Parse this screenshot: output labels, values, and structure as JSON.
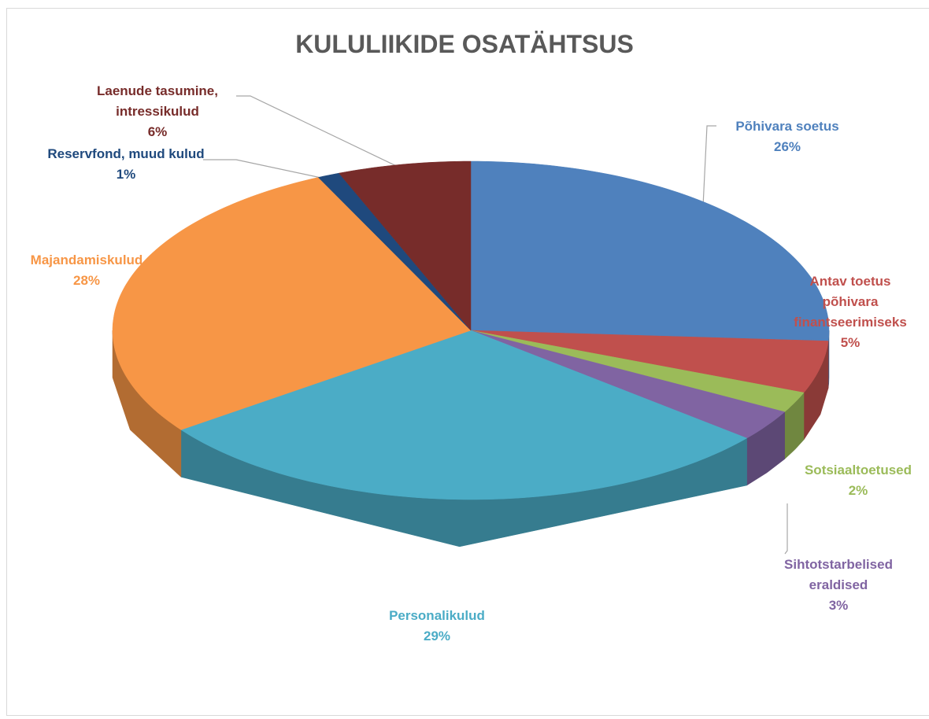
{
  "chart_data": {
    "type": "pie",
    "title": "KULULIIKIDE OSATÄHTSUS",
    "categories": [
      "Põhivara soetus",
      "Antav toetus põhivara finantseerimiseks",
      "Sotsiaaltoetused",
      "Sihtotstarbelised eraldised",
      "Personalikulud",
      "Majandamiskulud",
      "Reservfond, muud kulud",
      "Laenude tasumine, intressikulud"
    ],
    "values": [
      26,
      5,
      2,
      3,
      29,
      28,
      1,
      6
    ],
    "value_labels": [
      "26%",
      "5%",
      "2%",
      "3%",
      "29%",
      "28%",
      "1%",
      "6%"
    ],
    "colors": [
      "#4f81bd",
      "#c0504d",
      "#9bbb59",
      "#8064a2",
      "#4bacc6",
      "#f79646",
      "#1f497d",
      "#772c2a"
    ]
  }
}
